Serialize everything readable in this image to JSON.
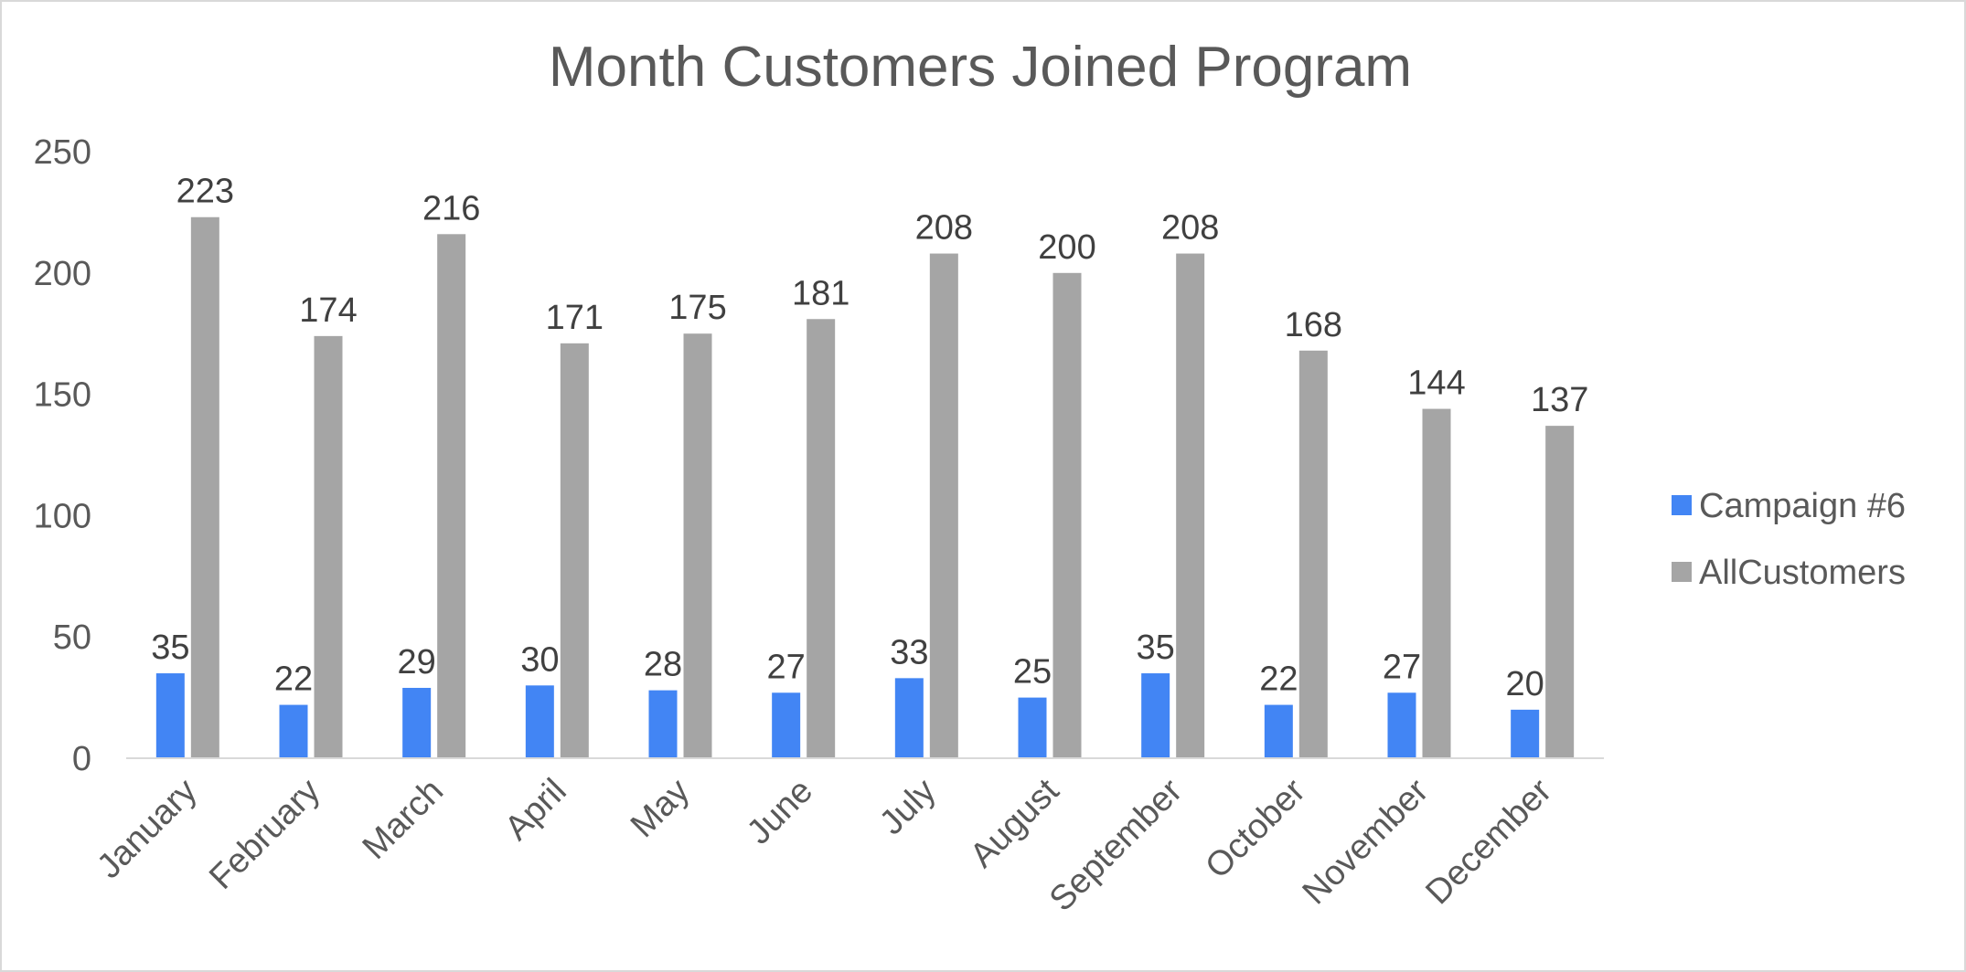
{
  "chart_data": {
    "type": "bar",
    "title": "Month Customers Joined Program",
    "xlabel": "",
    "ylabel": "",
    "categories": [
      "January",
      "February",
      "March",
      "April",
      "May",
      "June",
      "July",
      "August",
      "September",
      "October",
      "November",
      "December"
    ],
    "series": [
      {
        "name": "Campaign #6",
        "color": "#4285f4",
        "values": [
          35,
          22,
          29,
          30,
          28,
          27,
          33,
          25,
          35,
          22,
          27,
          20
        ]
      },
      {
        "name": "AllCustomers",
        "color": "#a5a5a5",
        "values": [
          223,
          174,
          216,
          171,
          175,
          181,
          208,
          200,
          208,
          168,
          144,
          137
        ]
      }
    ],
    "ylim": [
      0,
      250
    ],
    "yticks": [
      0,
      50,
      100,
      150,
      200,
      250
    ],
    "grid": false,
    "legend_position": "right",
    "data_labels": true
  }
}
